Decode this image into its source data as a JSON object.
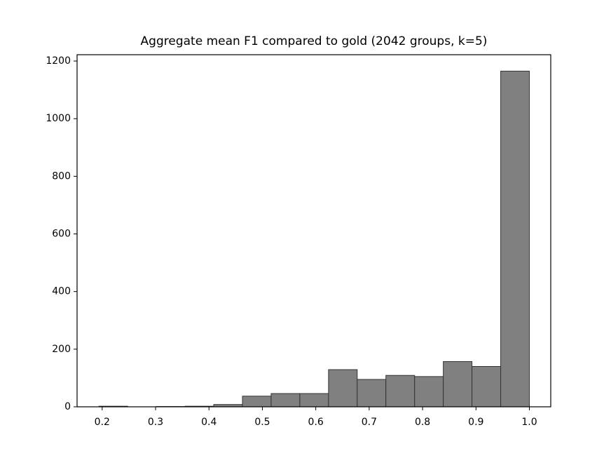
{
  "chart_data": {
    "type": "histogram",
    "title": "Aggregate mean F1 compared to gold (2042 groups, k=5)",
    "bins": [
      0.194,
      0.2477,
      0.3015,
      0.3552,
      0.4089,
      0.4627,
      0.5164,
      0.5701,
      0.6239,
      0.6776,
      0.7313,
      0.7851,
      0.8388,
      0.8925,
      0.9463,
      1.0
    ],
    "values": [
      2,
      0,
      1,
      2,
      8,
      37,
      46,
      46,
      129,
      95,
      109,
      105,
      157,
      140,
      1165
    ],
    "color": "#808080",
    "edgecolor": "#333333",
    "xlim": [
      0.153,
      1.04
    ],
    "xticks": [
      0.2,
      0.3,
      0.4,
      0.5,
      0.6,
      0.7,
      0.8,
      0.9,
      {
        "value": 1,
        "label": "1.0"
      }
    ],
    "ylim": [
      0,
      1222
    ],
    "yticks": [
      0,
      200,
      400,
      600,
      800,
      1000,
      1200
    ],
    "grid": false
  }
}
